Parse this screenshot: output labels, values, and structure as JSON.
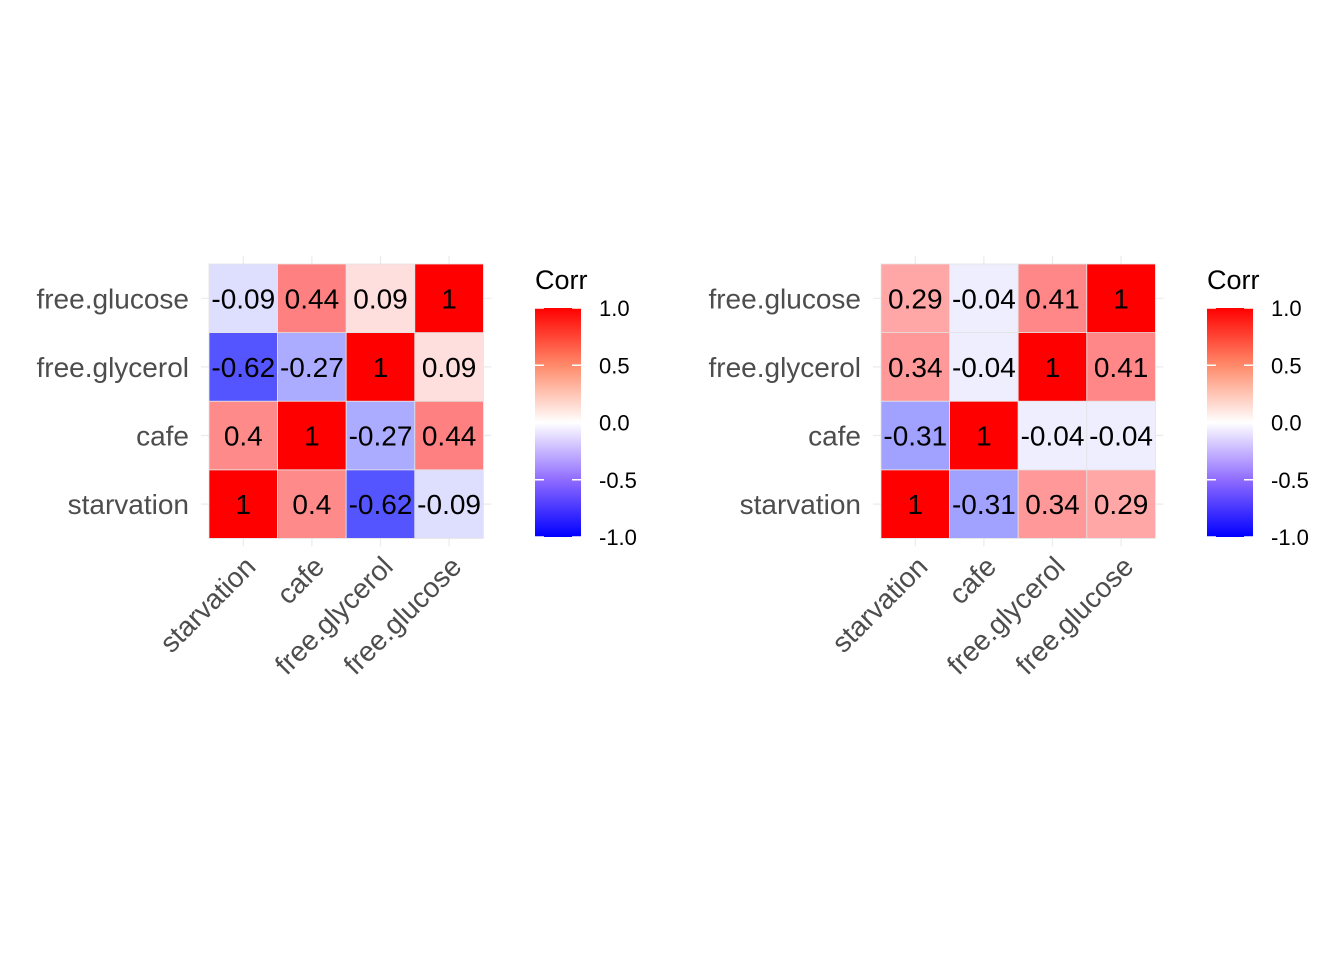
{
  "chart_data": [
    {
      "type": "heatmap",
      "variables": [
        "starvation",
        "cafe",
        "free.glycerol",
        "free.glucose"
      ],
      "matrix": [
        [
          1,
          0.4,
          -0.62,
          -0.09
        ],
        [
          0.4,
          1,
          -0.27,
          0.44
        ],
        [
          -0.62,
          -0.27,
          1,
          0.09
        ],
        [
          -0.09,
          0.44,
          0.09,
          1
        ]
      ],
      "cell_labels": [
        [
          "1",
          "0.4",
          "-0.62",
          "-0.09"
        ],
        [
          "0.4",
          "1",
          "-0.27",
          "0.44"
        ],
        [
          "-0.62",
          "-0.27",
          "1",
          "0.09"
        ],
        [
          "-0.09",
          "0.44",
          "0.09",
          "1"
        ]
      ],
      "legend_title": "Corr",
      "legend_ticks": [
        "1.0",
        "0.5",
        "0.0",
        "-0.5",
        "-1.0"
      ],
      "color_range": [
        -1,
        1
      ],
      "colors": {
        "low": "#0000ff",
        "mid": "#ffffff",
        "high": "#ff0000"
      }
    },
    {
      "type": "heatmap",
      "variables": [
        "starvation",
        "cafe",
        "free.glycerol",
        "free.glucose"
      ],
      "matrix": [
        [
          1,
          -0.31,
          0.34,
          0.29
        ],
        [
          -0.31,
          1,
          -0.04,
          -0.04
        ],
        [
          0.34,
          -0.04,
          1,
          0.41
        ],
        [
          0.29,
          -0.04,
          0.41,
          1
        ]
      ],
      "cell_labels": [
        [
          "1",
          "-0.31",
          "0.34",
          "0.29"
        ],
        [
          "-0.31",
          "1",
          "-0.04",
          "-0.04"
        ],
        [
          "0.34",
          "-0.04",
          "1",
          "0.41"
        ],
        [
          "0.29",
          "-0.04",
          "0.41",
          "1"
        ]
      ],
      "legend_title": "Corr",
      "legend_ticks": [
        "1.0",
        "0.5",
        "0.0",
        "-0.5",
        "-1.0"
      ],
      "color_range": [
        -1,
        1
      ],
      "colors": {
        "low": "#0000ff",
        "mid": "#ffffff",
        "high": "#ff0000"
      }
    }
  ]
}
